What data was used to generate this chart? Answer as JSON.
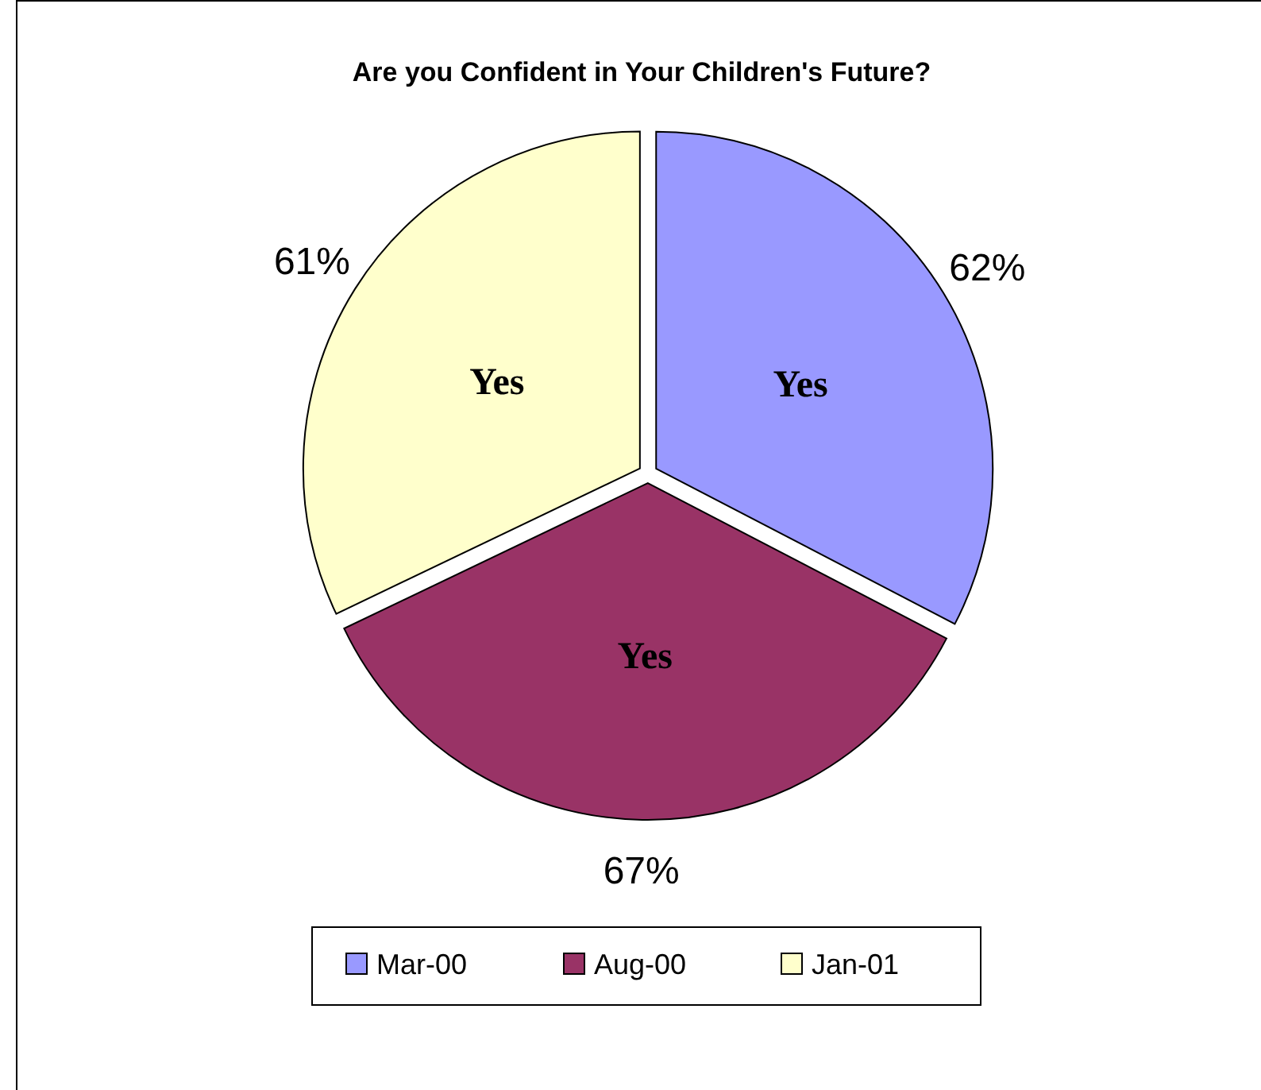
{
  "chart_data": {
    "type": "pie",
    "title": "Are you Confident in Your Children's Future?",
    "categories": [
      "Mar-00",
      "Aug-00",
      "Jan-01"
    ],
    "values": [
      62,
      67,
      61
    ],
    "value_labels": [
      "62%",
      "67%",
      "61%"
    ],
    "colors": [
      "#9999ff",
      "#993366",
      "#ffffcc"
    ],
    "annotations": [
      {
        "text": "Yes",
        "x": "Mar-00"
      },
      {
        "text": "Yes",
        "x": "Aug-00"
      },
      {
        "text": "Yes",
        "x": "Jan-01"
      }
    ],
    "legend": "bottom"
  }
}
